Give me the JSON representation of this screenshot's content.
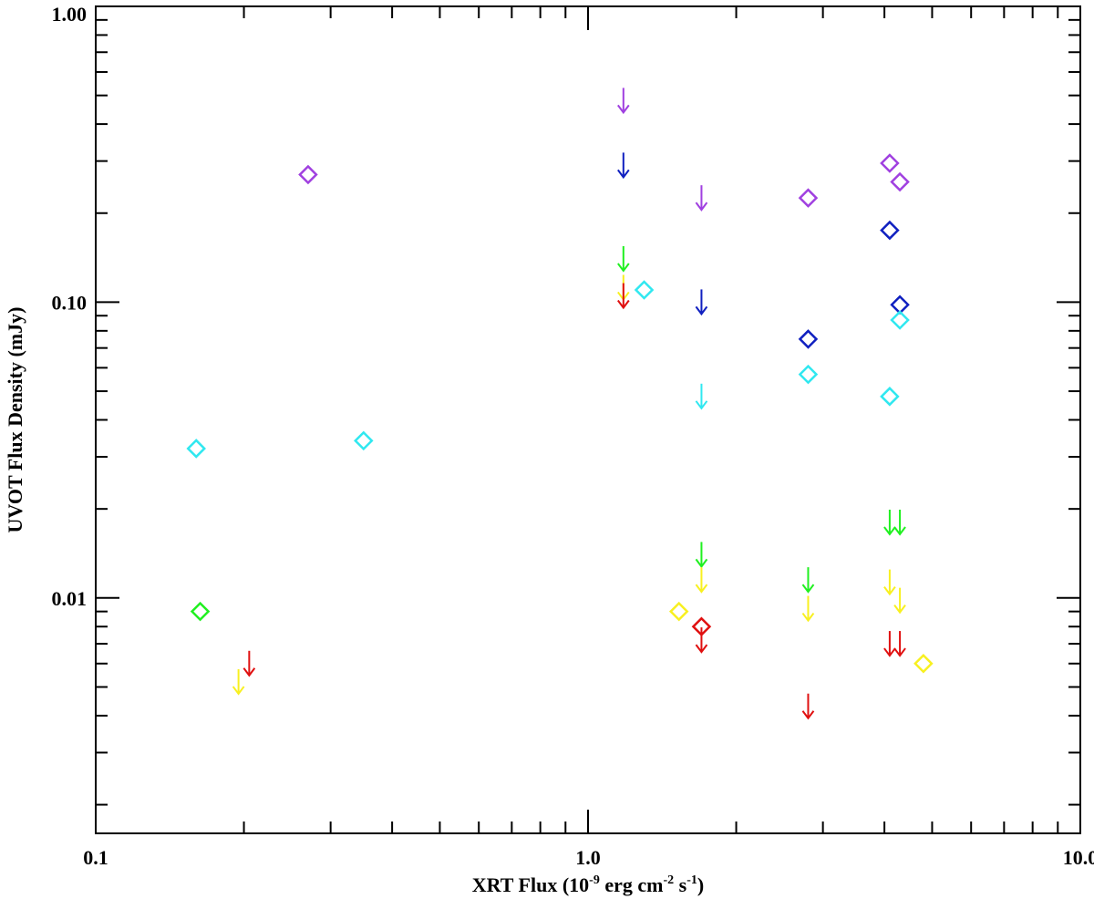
{
  "chart_data": {
    "type": "scatter",
    "xlabel": {
      "prefix": "XRT Flux (10",
      "exp1": "-9",
      "mid1": " erg cm",
      "exp2": "-2",
      "mid2": " s",
      "exp3": "-1",
      "suffix": ")"
    },
    "ylabel": "UVOT Flux Density (mJy)",
    "xscale": "log",
    "yscale": "log",
    "xlim": [
      0.1,
      10.0
    ],
    "ylim": [
      0.0016,
      1.0
    ],
    "grid": false,
    "x_tick_labels": [
      {
        "value": 0.1,
        "label": "0.1"
      },
      {
        "value": 1.0,
        "label": "1.0"
      },
      {
        "value": 10.0,
        "label": "10.0"
      }
    ],
    "y_tick_labels": [
      {
        "value": 0.01,
        "label": "0.01"
      },
      {
        "value": 0.1,
        "label": "0.10"
      },
      {
        "value": 1.0,
        "label": "1.00"
      }
    ],
    "colors": {
      "purple": "#a040e0",
      "blue": "#1020c0",
      "cyan": "#30e8f0",
      "green": "#20f020",
      "yellow": "#f8f020",
      "red": "#e01010"
    },
    "series": [
      {
        "color": "purple",
        "detections": [
          {
            "x": 0.27,
            "y": 0.27
          },
          {
            "x": 2.8,
            "y": 0.225
          },
          {
            "x": 4.1,
            "y": 0.295
          },
          {
            "x": 4.3,
            "y": 0.255
          }
        ],
        "upper_limits": [
          {
            "x": 1.18,
            "y": 0.48
          },
          {
            "x": 1.7,
            "y": 0.225
          }
        ]
      },
      {
        "color": "blue",
        "detections": [
          {
            "x": 2.8,
            "y": 0.075
          },
          {
            "x": 4.1,
            "y": 0.175
          },
          {
            "x": 4.3,
            "y": 0.098
          }
        ],
        "upper_limits": [
          {
            "x": 1.18,
            "y": 0.29
          },
          {
            "x": 1.7,
            "y": 0.1
          }
        ]
      },
      {
        "color": "cyan",
        "detections": [
          {
            "x": 0.16,
            "y": 0.032
          },
          {
            "x": 0.35,
            "y": 0.034
          },
          {
            "x": 1.3,
            "y": 0.11
          },
          {
            "x": 2.8,
            "y": 0.057
          },
          {
            "x": 4.1,
            "y": 0.048
          },
          {
            "x": 4.3,
            "y": 0.087
          }
        ],
        "upper_limits": [
          {
            "x": 1.7,
            "y": 0.048
          }
        ]
      },
      {
        "color": "green",
        "detections": [
          {
            "x": 0.163,
            "y": 0.009
          }
        ],
        "upper_limits": [
          {
            "x": 1.18,
            "y": 0.14
          },
          {
            "x": 1.7,
            "y": 0.014
          },
          {
            "x": 2.8,
            "y": 0.0115
          },
          {
            "x": 4.1,
            "y": 0.018
          },
          {
            "x": 4.3,
            "y": 0.018
          }
        ]
      },
      {
        "color": "yellow",
        "detections": [
          {
            "x": 1.53,
            "y": 0.009
          },
          {
            "x": 4.8,
            "y": 0.006
          }
        ],
        "upper_limits": [
          {
            "x": 0.195,
            "y": 0.0052
          },
          {
            "x": 1.18,
            "y": 0.112
          },
          {
            "x": 1.7,
            "y": 0.0115
          },
          {
            "x": 2.8,
            "y": 0.0092
          },
          {
            "x": 4.1,
            "y": 0.0113
          },
          {
            "x": 4.3,
            "y": 0.0098
          }
        ]
      },
      {
        "color": "red",
        "detections": [
          {
            "x": 1.7,
            "y": 0.008
          }
        ],
        "upper_limits": [
          {
            "x": 0.205,
            "y": 0.006
          },
          {
            "x": 1.18,
            "y": 0.105
          },
          {
            "x": 1.7,
            "y": 0.0072
          },
          {
            "x": 2.8,
            "y": 0.0043
          },
          {
            "x": 4.1,
            "y": 0.007
          },
          {
            "x": 4.3,
            "y": 0.007
          }
        ]
      }
    ]
  }
}
